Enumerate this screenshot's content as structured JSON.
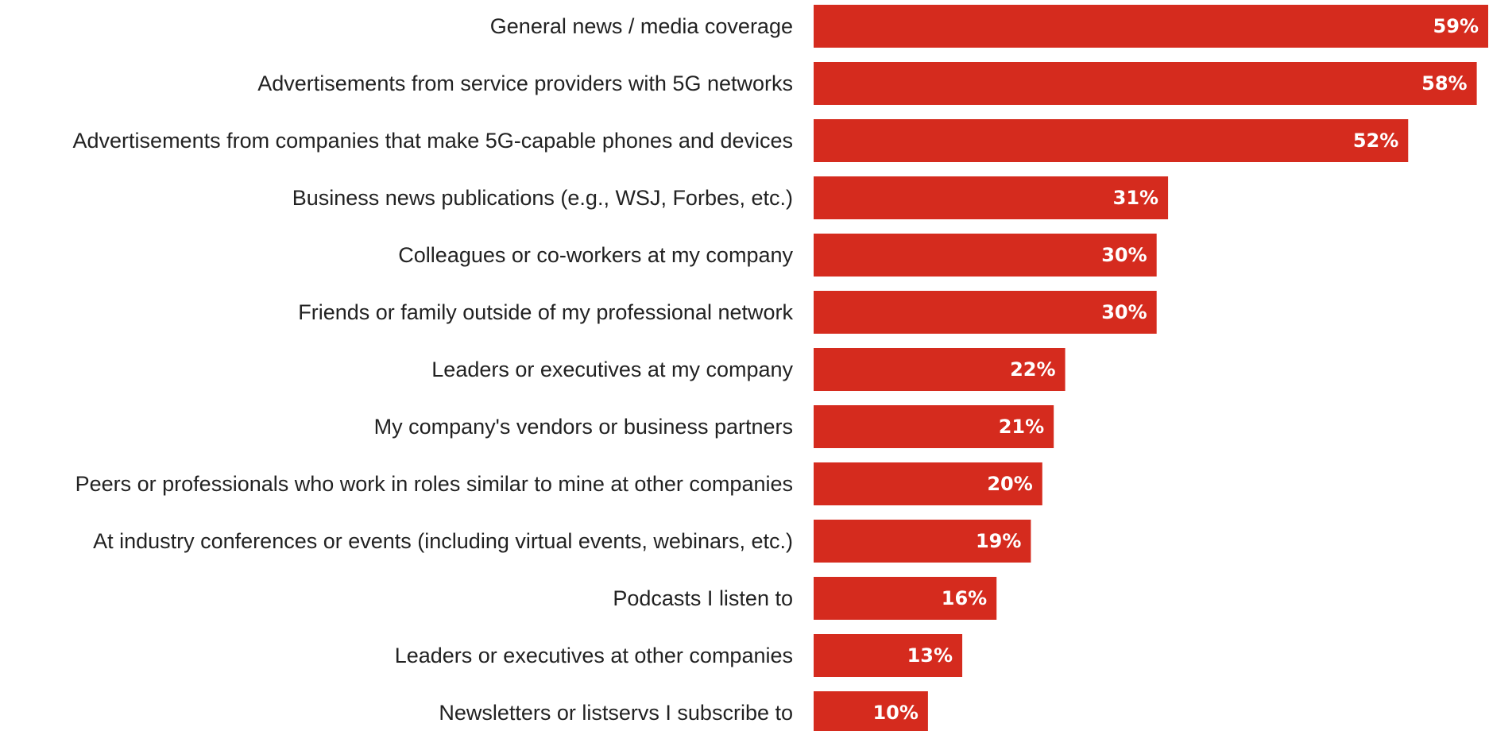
{
  "chart_data": {
    "type": "bar",
    "orientation": "horizontal",
    "categories": [
      "General news / media coverage",
      "Advertisements from service providers with 5G networks",
      "Advertisements from companies that make 5G-capable phones and devices",
      "Business news publications (e.g., WSJ, Forbes, etc.)",
      "Colleagues or co-workers at my company",
      "Friends or family outside of my professional network",
      "Leaders or executives at my company",
      "My company's vendors or business partners",
      "Peers or professionals who work in roles similar to mine at other companies",
      "At industry conferences or events (including virtual events, webinars, etc.)",
      "Podcasts I listen to",
      "Leaders or executives at other companies",
      "Newsletters or listservs I subscribe to"
    ],
    "values": [
      59,
      58,
      52,
      31,
      30,
      30,
      22,
      21,
      20,
      19,
      16,
      13,
      10
    ],
    "value_labels": [
      "59%",
      "58%",
      "52%",
      "31%",
      "30%",
      "30%",
      "22%",
      "21%",
      "20%",
      "19%",
      "16%",
      "13%",
      "10%"
    ],
    "unit": "%",
    "xlim": [
      0,
      59
    ],
    "grid": false,
    "legend": "none",
    "bar_color": "#d52b1e",
    "label_color": "#222222",
    "value_label_color": "#ffffff"
  }
}
